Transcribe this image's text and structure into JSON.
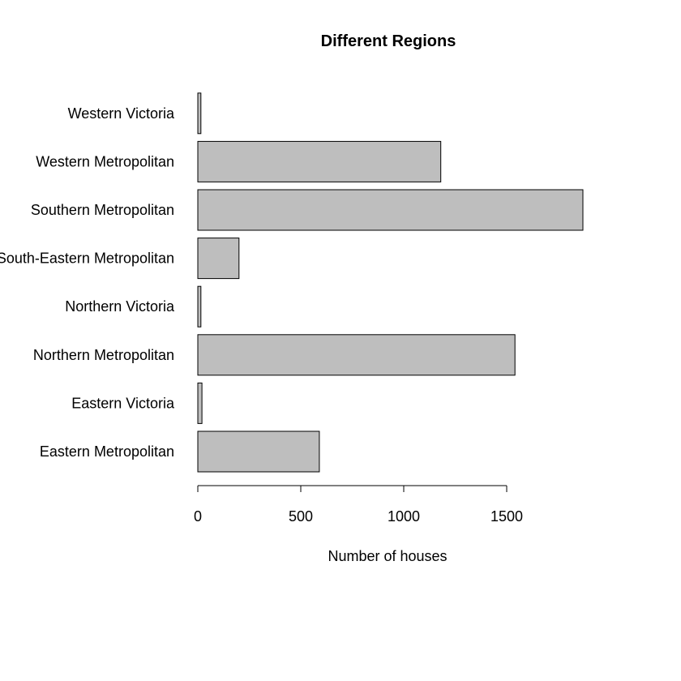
{
  "chart_data": {
    "type": "bar",
    "orientation": "horizontal",
    "title": "Different Regions",
    "xlabel": "Number of houses",
    "ylabel": "",
    "categories": [
      "Eastern Metropolitan",
      "Eastern Victoria",
      "Northern Metropolitan",
      "Northern Victoria",
      "South-Eastern Metropolitan",
      "Southern Metropolitan",
      "Western Metropolitan",
      "Western Victoria"
    ],
    "values": [
      590,
      20,
      1540,
      15,
      200,
      1870,
      1180,
      15
    ],
    "xlim": [
      0,
      1900
    ],
    "xticks": [
      0,
      500,
      1000,
      1500
    ],
    "xtick_labels": [
      "0",
      "500",
      "1000",
      "1500"
    ],
    "bar_color": "#bebebe",
    "edge_color": "#000000",
    "grid": false,
    "legend": false
  }
}
